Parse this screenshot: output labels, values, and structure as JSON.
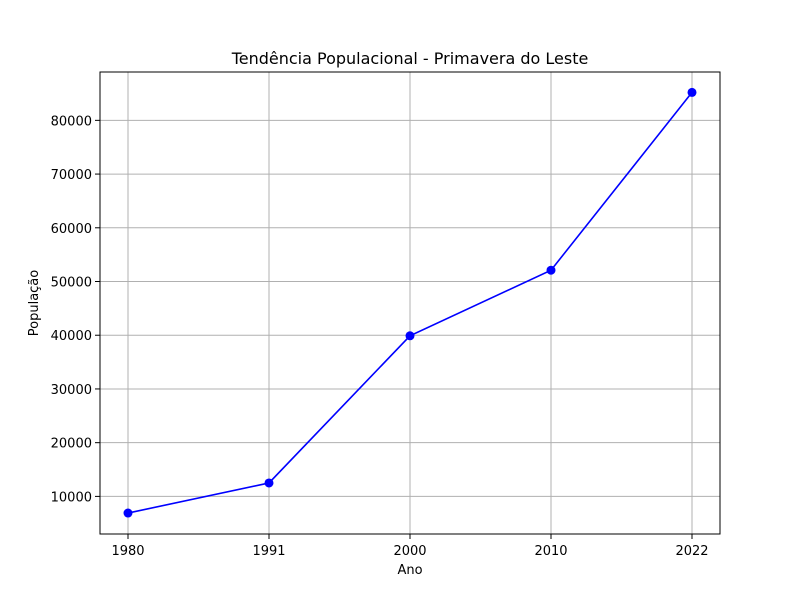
{
  "chart_data": {
    "type": "line",
    "title": "Tendência Populacional - Primavera do Leste",
    "xlabel": "Ano",
    "ylabel": "População",
    "categories": [
      "1980",
      "1991",
      "2000",
      "2010",
      "2022"
    ],
    "series": [
      {
        "values": [
          6900,
          12500,
          39900,
          52100,
          85200
        ],
        "color": "#0000ff",
        "marker": "circle"
      }
    ],
    "yticks": [
      10000,
      20000,
      30000,
      40000,
      50000,
      60000,
      70000,
      80000
    ],
    "ylim": [
      3000,
      89000
    ],
    "grid": true,
    "legend": "none"
  }
}
